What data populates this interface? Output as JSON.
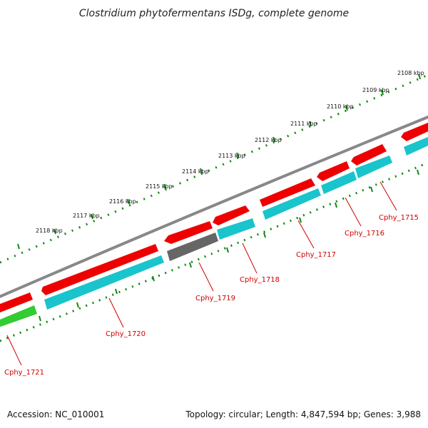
{
  "title": "Clostridium phytofermentans ISDg, complete genome",
  "accession_label": "Accession: NC_010001",
  "summary_label": "Topology: circular; Length: 4,847,594 bp; Genes: 3,988",
  "colors": {
    "forward_cds": "#ee0000",
    "reverse_cds": "#19c4cc",
    "pseudo_gene": "#666666",
    "other_gene": "#33cc33",
    "backbone": "#888888",
    "tick": "#118811",
    "label": "#d00000"
  },
  "ticks": [
    {
      "label": "2108 kbp"
    },
    {
      "label": "2109 kbp"
    },
    {
      "label": "2110 kbp"
    },
    {
      "label": "2111 kbp"
    },
    {
      "label": "2112 kbp"
    },
    {
      "label": "2113 kbp"
    },
    {
      "label": "2114 kbp"
    },
    {
      "label": "2115 kbp"
    },
    {
      "label": "2116 kbp"
    },
    {
      "label": "2117 kbp"
    },
    {
      "label": "2118 kbp"
    }
  ],
  "genes": [
    {
      "label": "Cphy_1715"
    },
    {
      "label": "Cphy_1716"
    },
    {
      "label": "Cphy_1717"
    },
    {
      "label": "Cphy_1718"
    },
    {
      "label": "Cphy_1719"
    },
    {
      "label": "Cphy_1720"
    },
    {
      "label": "Cphy_1721"
    }
  ]
}
